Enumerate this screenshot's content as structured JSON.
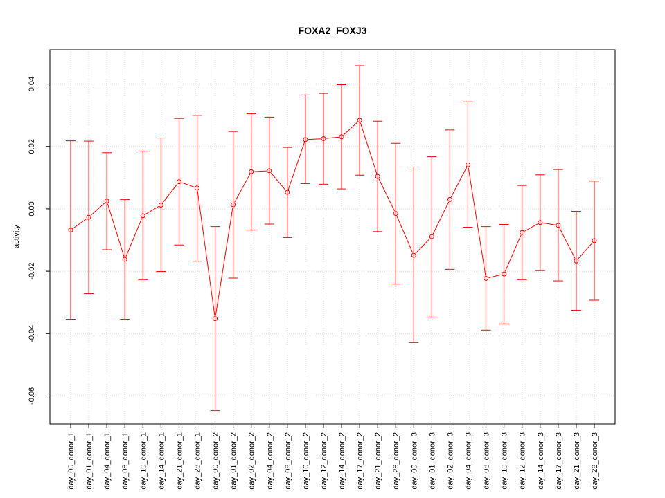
{
  "chart_data": {
    "type": "line",
    "title": "FOXA2_FOXJ3",
    "xlabel": "",
    "ylabel": "activity",
    "ylim": [
      -0.069,
      0.051
    ],
    "yticks": [
      -0.06,
      -0.04,
      -0.02,
      0.0,
      0.02,
      0.04
    ],
    "ytick_labels": [
      "-0.06",
      "-0.04",
      "-0.02",
      "0.00",
      "0.02",
      "0.04"
    ],
    "grid": true,
    "color": "#ff0000",
    "categories": [
      "day_00_donor_1",
      "day_01_donor_1",
      "day_04_donor_1",
      "day_08_donor_1",
      "day_10_donor_1",
      "day_14_donor_1",
      "day_21_donor_1",
      "day_28_donor_1",
      "day_00_donor_2",
      "day_01_donor_2",
      "day_02_donor_2",
      "day_04_donor_2",
      "day_08_donor_2",
      "day_10_donor_2",
      "day_12_donor_2",
      "day_14_donor_2",
      "day_17_donor_2",
      "day_21_donor_2",
      "day_28_donor_2",
      "day_00_donor_3",
      "day_01_donor_3",
      "day_02_donor_3",
      "day_04_donor_3",
      "day_08_donor_3",
      "day_10_donor_3",
      "day_12_donor_3",
      "day_14_donor_3",
      "day_17_donor_3",
      "day_21_donor_3",
      "day_28_donor_3"
    ],
    "series": [
      {
        "values": [
          -0.0068,
          -0.0027,
          0.0025,
          -0.0162,
          -0.0022,
          0.0012,
          0.0087,
          0.0067,
          -0.0352,
          0.0013,
          0.0119,
          0.0122,
          0.0053,
          0.0222,
          0.0225,
          0.0231,
          0.0284,
          0.0104,
          -0.0015,
          -0.0149,
          -0.0089,
          0.003,
          0.0141,
          -0.0223,
          -0.0209,
          -0.0076,
          -0.0044,
          -0.0053,
          -0.0167,
          -0.0102
        ],
        "upper": [
          0.0218,
          0.0217,
          0.018,
          0.003,
          0.0185,
          0.0227,
          0.029,
          0.0299,
          -0.0057,
          0.0248,
          0.0305,
          0.0294,
          0.0197,
          0.0365,
          0.037,
          0.0398,
          0.0459,
          0.0281,
          0.021,
          0.0134,
          0.0167,
          0.0253,
          0.0343,
          -0.0057,
          -0.005,
          0.0075,
          0.0109,
          0.0126,
          -0.0008,
          0.0089
        ],
        "lower": [
          -0.0354,
          -0.0272,
          -0.0131,
          -0.0354,
          -0.0227,
          -0.0201,
          -0.0116,
          -0.0168,
          -0.0647,
          -0.0222,
          -0.0068,
          -0.0049,
          -0.0092,
          0.0081,
          0.0079,
          0.0064,
          0.0108,
          -0.0073,
          -0.0241,
          -0.0429,
          -0.0347,
          -0.0194,
          -0.0059,
          -0.0389,
          -0.0369,
          -0.0227,
          -0.0198,
          -0.0231,
          -0.0325,
          -0.0293
        ]
      }
    ]
  }
}
